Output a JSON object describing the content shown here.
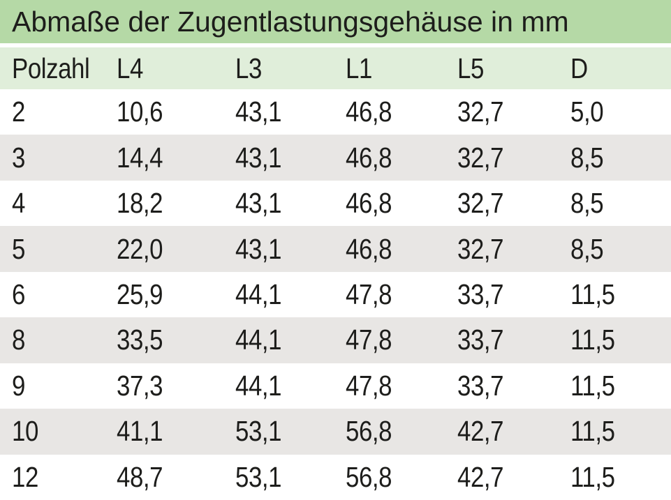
{
  "title": "Abmaße der Zugentlastungsgehäuse in mm",
  "colors": {
    "title_bg": "#b5d9a6",
    "header_bg": "#e0eeda",
    "row_bg": "#ffffff",
    "row_alt_bg": "#e8e6e4",
    "text": "#1d1d1b"
  },
  "chart_data": {
    "type": "table",
    "title": "Abmaße der Zugentlastungsgehäuse in mm",
    "columns": [
      "Polzahl",
      "L4",
      "L3",
      "L1",
      "L5",
      "D"
    ],
    "rows": [
      [
        "2",
        "10,6",
        "43,1",
        "46,8",
        "32,7",
        "5,0"
      ],
      [
        "3",
        "14,4",
        "43,1",
        "46,8",
        "32,7",
        "8,5"
      ],
      [
        "4",
        "18,2",
        "43,1",
        "46,8",
        "32,7",
        "8,5"
      ],
      [
        "5",
        "22,0",
        "43,1",
        "46,8",
        "32,7",
        "8,5"
      ],
      [
        "6",
        "25,9",
        "44,1",
        "47,8",
        "33,7",
        "11,5"
      ],
      [
        "8",
        "33,5",
        "44,1",
        "47,8",
        "33,7",
        "11,5"
      ],
      [
        "9",
        "37,3",
        "44,1",
        "47,8",
        "33,7",
        "11,5"
      ],
      [
        "10",
        "41,1",
        "53,1",
        "56,8",
        "42,7",
        "11,5"
      ],
      [
        "12",
        "48,7",
        "53,1",
        "56,8",
        "42,7",
        "11,5"
      ]
    ],
    "layout": {
      "alternating_rows": true,
      "first_data_row_background": "white",
      "header_alignment": "left",
      "units": "mm"
    }
  }
}
